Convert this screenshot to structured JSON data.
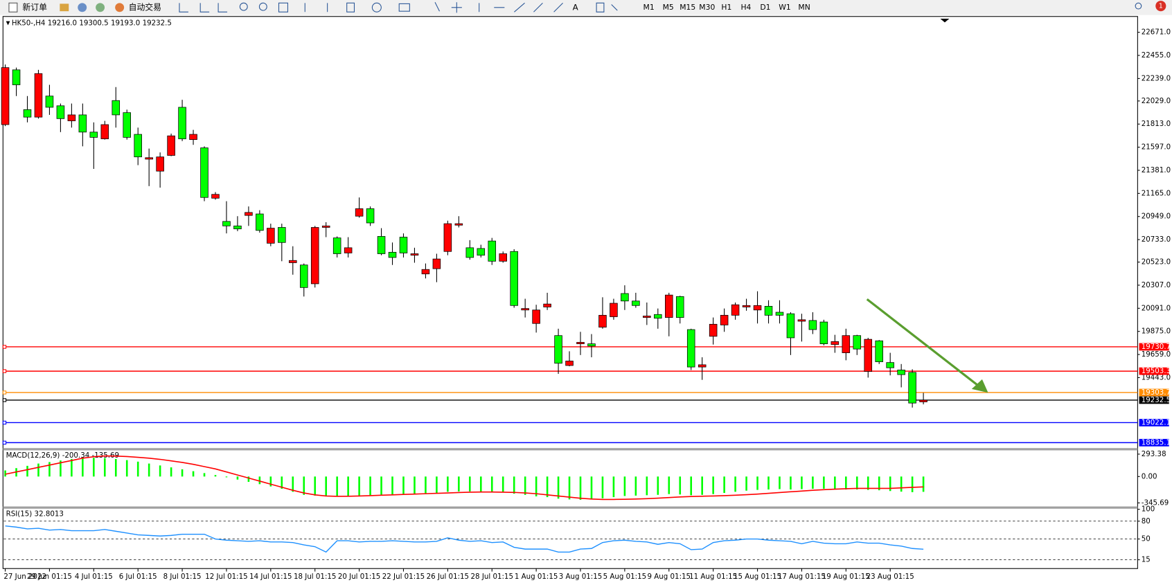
{
  "toolbar": {
    "buttons": [
      "新订单",
      "自动交易"
    ],
    "timeframes": [
      "M1",
      "M5",
      "M15",
      "M30",
      "H1",
      "H4",
      "D1",
      "W1",
      "MN"
    ],
    "notification": "1"
  },
  "chart_data": {
    "type": "candlestick",
    "header": {
      "symbol": "HK50-,H4",
      "ohlc": [
        "19216.0",
        "19300.5",
        "19193.0",
        "19232.5"
      ]
    },
    "categories": [
      "27 Jun 2022",
      null,
      null,
      null,
      "29 Jun 01:15",
      null,
      null,
      null,
      "4 Jul 01:15",
      null,
      null,
      null,
      "6 Jul 01:15",
      null,
      null,
      null,
      "8 Jul 01:15",
      null,
      null,
      null,
      "12 Jul 01:15",
      null,
      null,
      null,
      "14 Jul 01:15",
      null,
      null,
      null,
      "18 Jul 01:15",
      null,
      null,
      null,
      "20 Jul 01:15",
      null,
      null,
      null,
      "22 Jul 01:15",
      null,
      null,
      null,
      "26 Jul 01:15",
      null,
      null,
      null,
      "28 Jul 01:15",
      null,
      null,
      null,
      "1 Aug 01:15",
      null,
      null,
      null,
      "3 Aug 01:15",
      null,
      null,
      null,
      "5 Aug 01:15",
      null,
      null,
      null,
      "9 Aug 01:15",
      null,
      null,
      null,
      "11 Aug 01:15",
      null,
      null,
      null,
      "15 Aug 01:15",
      null,
      null,
      null,
      "17 Aug 01:15",
      null,
      null,
      null,
      "19 Aug 01:15",
      null,
      null,
      null,
      "23 Aug 01:15",
      null,
      null,
      null
    ],
    "open": [
      21808,
      22320,
      21948,
      21878,
      22075,
      21984,
      21843,
      21899,
      21738,
      21675,
      22033,
      21920,
      21717,
      21485,
      21373,
      21520,
      21970,
      21668,
      21591,
      21120,
      20903,
      20861,
      20959,
      20973,
      20699,
      20847,
      20517,
      20496,
      20320,
      20847,
      20749,
      20608,
      20952,
      21022,
      20763,
      20615,
      20756,
      20587,
      20412,
      20461,
      20622,
      20868,
      20657,
      20650,
      20720,
      20531,
      20622,
      20075,
      19949,
      20103,
      19836,
      19556,
      19759,
      19759,
      19914,
      20012,
      20229,
      20159,
      20005,
      20033,
      20005,
      20201,
      19892,
      19542,
      19829,
      19935,
      20026,
      20103,
      20075,
      20110,
      20054,
      20040,
      19970,
      19977,
      19963,
      19752,
      19675,
      19836,
      19500,
      19787,
      19584,
      19514,
      19492,
      19216
    ],
    "high": [
      22370,
      22341,
      22075,
      22320,
      22180,
      22005,
      22005,
      22005,
      21829,
      21843,
      22159,
      21948,
      21780,
      21584,
      21548,
      21724,
      22040,
      21759,
      21605,
      21177,
      21092,
      20952,
      21043,
      21008,
      20882,
      20882,
      20671,
      20510,
      20861,
      20896,
      20763,
      20756,
      21127,
      21043,
      20840,
      20706,
      20791,
      20657,
      20510,
      20601,
      20910,
      20952,
      20728,
      20685,
      20749,
      20622,
      20643,
      20180,
      20124,
      20236,
      19900,
      19689,
      19871,
      19850,
      20194,
      20180,
      20306,
      20236,
      20145,
      20089,
      20236,
      20208,
      19900,
      19633,
      20005,
      20089,
      20145,
      20180,
      20250,
      20166,
      20166,
      20054,
      20040,
      20054,
      19984,
      19843,
      19900,
      19843,
      19815,
      19794,
      19675,
      19570,
      19521,
      19300.5
    ],
    "low": [
      21794,
      22075,
      21829,
      21864,
      21899,
      21738,
      21780,
      21605,
      21394,
      21668,
      21780,
      21668,
      21429,
      21233,
      21219,
      21513,
      21654,
      21619,
      21092,
      21106,
      20791,
      20812,
      20861,
      20798,
      20671,
      20531,
      20405,
      20201,
      20285,
      20756,
      20566,
      20566,
      20938,
      20861,
      20587,
      20496,
      20566,
      20517,
      20370,
      20335,
      20587,
      20847,
      20545,
      20566,
      20496,
      20517,
      20096,
      20005,
      19864,
      20075,
      19478,
      19549,
      19654,
      19633,
      19900,
      19984,
      20075,
      20096,
      19935,
      19900,
      19829,
      19949,
      19514,
      19422,
      19752,
      19871,
      19984,
      20068,
      19949,
      19949,
      19949,
      19654,
      19780,
      19850,
      19745,
      19675,
      19605,
      19654,
      19443,
      19570,
      19464,
      19352,
      19163,
      19193
    ],
    "close": [
      22341,
      22180,
      21878,
      22285,
      21970,
      21864,
      21899,
      21738,
      21689,
      21808,
      21899,
      21689,
      21506,
      21499,
      21506,
      21703,
      21675,
      21717,
      21127,
      21156,
      20861,
      20833,
      20987,
      20819,
      20840,
      20706,
      20538,
      20285,
      20847,
      20861,
      20601,
      20657,
      21022,
      20889,
      20601,
      20566,
      20608,
      20601,
      20454,
      20552,
      20882,
      20882,
      20566,
      20587,
      20531,
      20601,
      20117,
      20089,
      20075,
      20131,
      19577,
      19598,
      19773,
      19738,
      20026,
      20138,
      20159,
      20117,
      20019,
      19998,
      20215,
      20005,
      19542,
      19563,
      19942,
      20026,
      20124,
      20117,
      20117,
      20026,
      20026,
      19815,
      19984,
      19892,
      19759,
      19780,
      19836,
      19710,
      19801,
      19591,
      19535,
      19471,
      19205,
      19232.5
    ],
    "up_color": "#ff0000",
    "down_color": "#00ff00",
    "ylim": [
      18791,
      22819
    ],
    "yticks": [
      {
        "value": 22671,
        "label": "22671.0"
      },
      {
        "value": 22455,
        "label": "22455.0"
      },
      {
        "value": 22239,
        "label": "22239.0"
      },
      {
        "value": 22029,
        "label": "22029.0"
      },
      {
        "value": 21813,
        "label": "21813.0"
      },
      {
        "value": 21597,
        "label": "21597.0"
      },
      {
        "value": 21381,
        "label": "21381.0"
      },
      {
        "value": 21165,
        "label": "21165.0"
      },
      {
        "value": 20949,
        "label": "20949.0"
      },
      {
        "value": 20733,
        "label": "20733.0"
      },
      {
        "value": 20523,
        "label": "20523.0"
      },
      {
        "value": 20307,
        "label": "20307.0"
      },
      {
        "value": 20091,
        "label": "20091.0"
      },
      {
        "value": 19875,
        "label": "19875.0"
      },
      {
        "value": 19659,
        "label": "19659.0"
      },
      {
        "value": 19443,
        "label": "19443.0"
      }
    ],
    "levels": [
      {
        "value": 19730.7,
        "label": "19730.7",
        "color": "#ff0000"
      },
      {
        "value": 19503.3,
        "label": "19503.3",
        "color": "#ff0000"
      },
      {
        "value": 19303.7,
        "label": "19303.7",
        "color": "#ff8c00"
      },
      {
        "value": 19232.5,
        "label": "19232.5",
        "color": "#000000"
      },
      {
        "value": 19022.1,
        "label": "19022.1",
        "color": "#0000ff"
      },
      {
        "value": 18835.1,
        "label": "18835.1",
        "color": "#0000ff"
      }
    ],
    "macd": {
      "name": "MACD(12,26,9)",
      "printed": [
        "-200.34",
        "-135.69"
      ],
      "color": "#00ff00",
      "signal_color": "#ff0000",
      "histogram": [
        80,
        110,
        140,
        170,
        190,
        210,
        230,
        240,
        245,
        240,
        230,
        215,
        195,
        170,
        145,
        120,
        95,
        70,
        45,
        20,
        -10,
        -40,
        -70,
        -100,
        -130,
        -160,
        -200,
        -240,
        -250,
        -255,
        -260,
        -255,
        -250,
        -245,
        -240,
        -235,
        -230,
        -225,
        -220,
        -215,
        -200,
        -195,
        -195,
        -200,
        -205,
        -210,
        -225,
        -240,
        -260,
        -270,
        -290,
        -300,
        -305,
        -300,
        -285,
        -270,
        -255,
        -250,
        -245,
        -240,
        -230,
        -235,
        -245,
        -240,
        -230,
        -215,
        -200,
        -185,
        -175,
        -170,
        -165,
        -170,
        -165,
        -160,
        -160,
        -165,
        -170,
        -170,
        -175,
        -180,
        -190,
        -198,
        -205,
        -200.34
      ],
      "signal": [
        30,
        60,
        90,
        120,
        150,
        180,
        210,
        240,
        260,
        270,
        268,
        262,
        252,
        240,
        225,
        205,
        185,
        160,
        130,
        100,
        60,
        20,
        -20,
        -60,
        -100,
        -140,
        -180,
        -215,
        -240,
        -255,
        -260,
        -258,
        -255,
        -250,
        -245,
        -240,
        -235,
        -230,
        -225,
        -220,
        -215,
        -210,
        -205,
        -203,
        -203,
        -205,
        -208,
        -215,
        -225,
        -240,
        -255,
        -270,
        -285,
        -295,
        -300,
        -300,
        -298,
        -295,
        -290,
        -283,
        -275,
        -268,
        -262,
        -258,
        -255,
        -250,
        -245,
        -238,
        -230,
        -220,
        -210,
        -200,
        -190,
        -180,
        -172,
        -165,
        -160,
        -155,
        -155,
        -155,
        -155,
        -148,
        -142,
        -135.69
      ],
      "ylim": [
        -392,
        343
      ],
      "yticks": [
        {
          "value": 293.38,
          "label": "293.38"
        },
        {
          "value": 0,
          "label": "0.00"
        },
        {
          "value": -345.69,
          "label": "-345.69"
        }
      ]
    },
    "rsi": {
      "name": "RSI(15)",
      "printed": "32.8013",
      "color": "#1e90ff",
      "values": [
        72,
        70,
        67,
        68,
        65,
        66,
        64,
        64,
        64,
        66,
        63,
        60,
        57,
        56,
        55,
        56,
        58,
        58,
        58,
        50,
        48,
        47,
        46,
        47,
        45,
        45,
        44,
        40,
        37,
        28,
        47,
        47,
        45,
        46,
        46,
        47,
        46,
        45,
        45,
        46,
        52,
        48,
        46,
        47,
        44,
        45,
        36,
        33,
        33,
        33,
        28,
        28,
        33,
        34,
        44,
        47,
        48,
        46,
        45,
        41,
        44,
        42,
        32,
        33,
        44,
        47,
        48,
        50,
        50,
        48,
        47,
        46,
        42,
        46,
        43,
        42,
        42,
        45,
        43,
        43,
        40,
        38,
        34,
        32.8013
      ],
      "ylim": [
        4,
        101
      ],
      "yticks": [
        100,
        80,
        50,
        15
      ],
      "levels": [
        80,
        50,
        15
      ]
    }
  }
}
